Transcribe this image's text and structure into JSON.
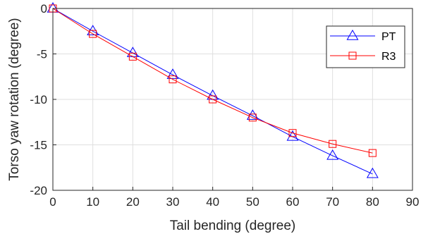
{
  "chart_data": {
    "type": "line",
    "xlabel": "Tail bending (degree)",
    "ylabel": "Torso yaw rotation (degree)",
    "xlim": [
      0,
      90
    ],
    "ylim": [
      -20,
      0
    ],
    "xticks": [
      0,
      10,
      20,
      30,
      40,
      50,
      60,
      70,
      80,
      90
    ],
    "yticks": [
      -20,
      -15,
      -10,
      -5,
      0
    ],
    "grid": true,
    "legend_position": "top-right",
    "x": [
      0,
      10,
      20,
      30,
      40,
      50,
      60,
      70,
      80
    ],
    "series": [
      {
        "name": "PT",
        "color": "#0000ff",
        "marker": "triangle",
        "values": [
          0,
          -2.5,
          -4.9,
          -7.3,
          -9.6,
          -11.8,
          -14.1,
          -16.2,
          -18.2
        ]
      },
      {
        "name": "R3",
        "color": "#ff0000",
        "marker": "square",
        "values": [
          0,
          -2.8,
          -5.3,
          -7.8,
          -10.0,
          -12.0,
          -13.7,
          -14.9,
          -15.9
        ]
      }
    ]
  }
}
